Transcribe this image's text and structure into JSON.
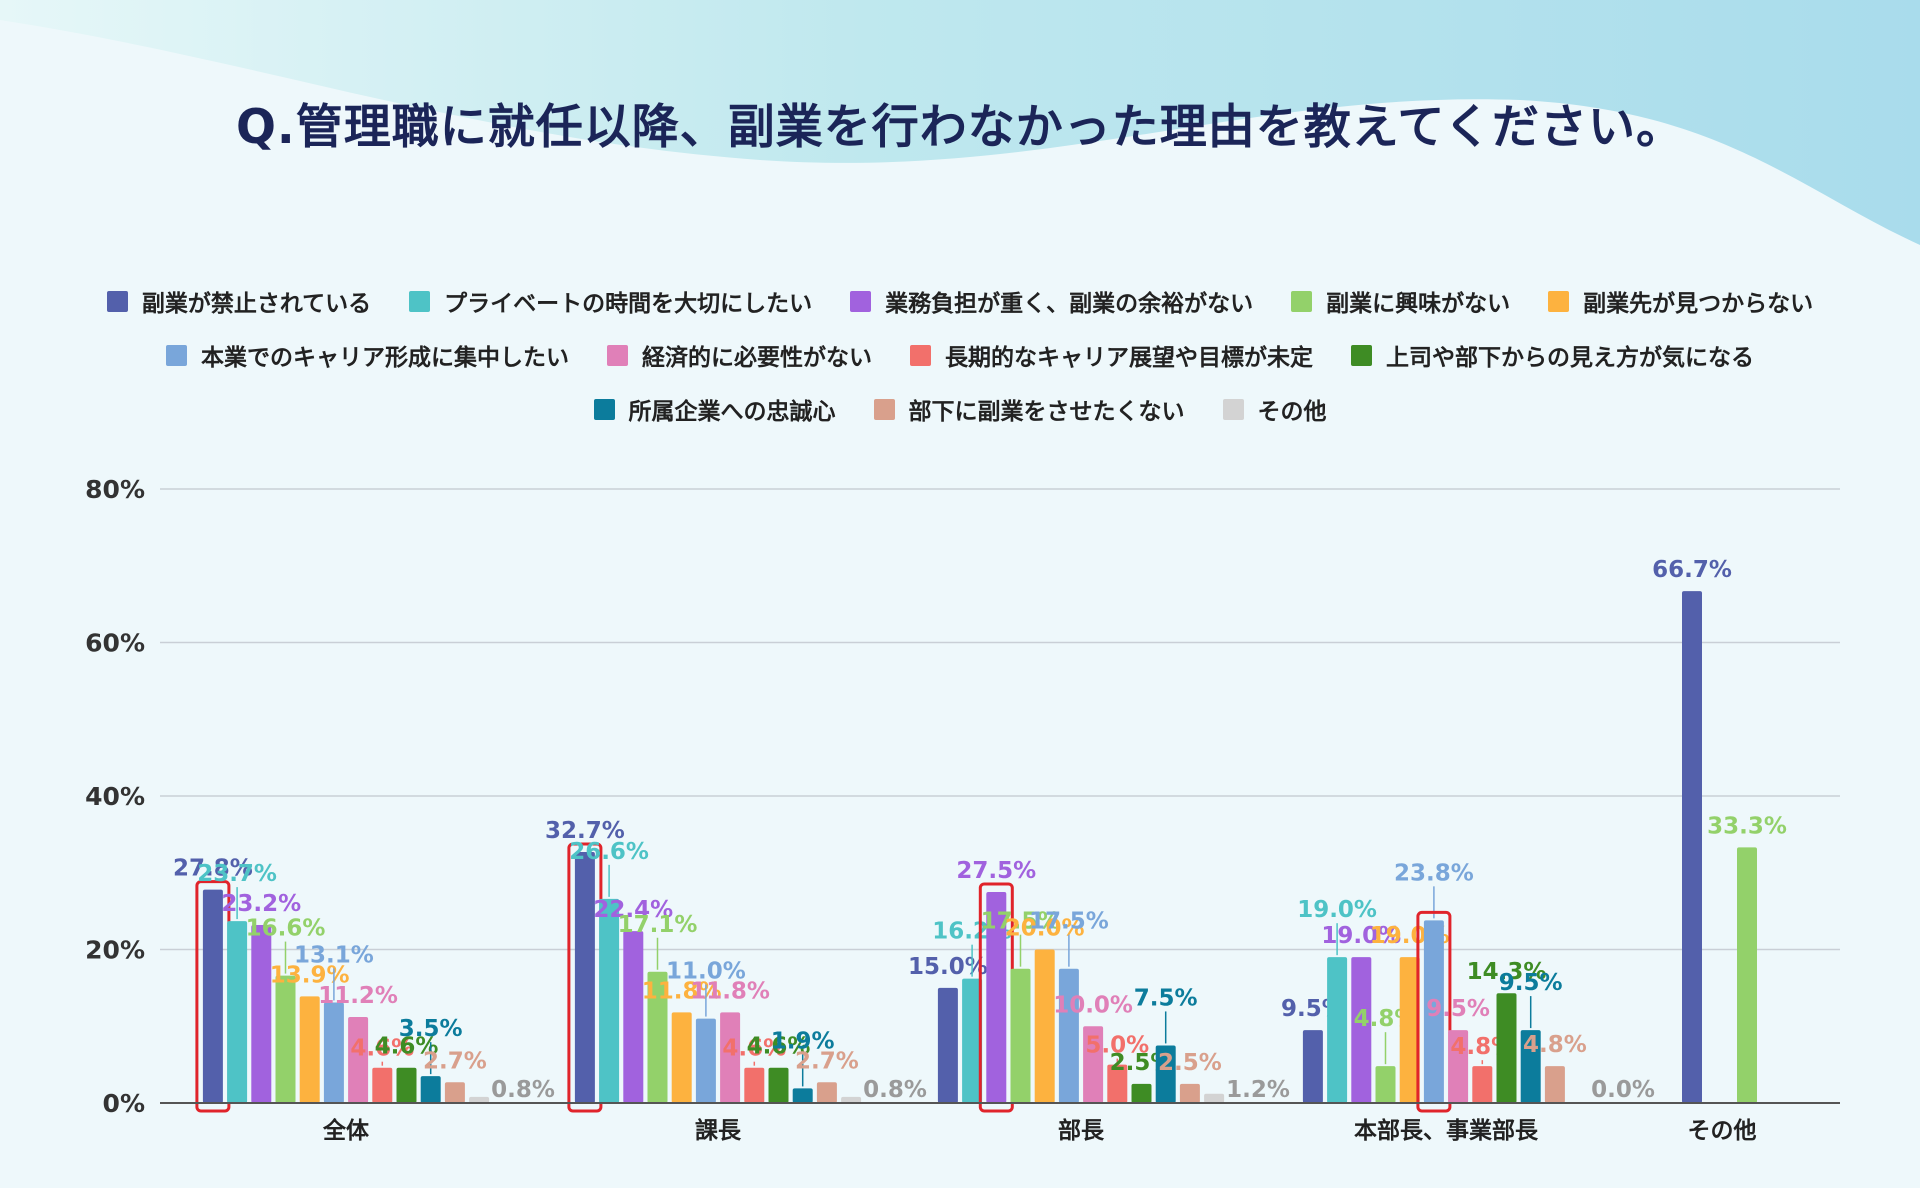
{
  "title": "Q.管理職に就任以降、副業を行わなかった理由を教えてください。",
  "chart_data": {
    "type": "bar",
    "title": "Q.管理職に就任以降、副業を行わなかった理由を教えてください。",
    "ylim": [
      0,
      80
    ],
    "yticks": [
      "0%",
      "20%",
      "40%",
      "60%",
      "80%"
    ],
    "unit": "%",
    "grid": true,
    "legend_position": "top",
    "categories": [
      "全体",
      "課長",
      "部長",
      "本部長、事業部長",
      "その他"
    ],
    "series": [
      {
        "name": "副業が禁止されている",
        "color": "#5360ab",
        "values": [
          27.8,
          32.7,
          15.0,
          9.5,
          66.7
        ]
      },
      {
        "name": "プライベートの時間を大切にしたい",
        "color": "#4ec3c6",
        "values": [
          23.7,
          26.6,
          16.2,
          19.0,
          null
        ]
      },
      {
        "name": "業務負担が重く、副業の余裕がない",
        "color": "#a162de",
        "values": [
          23.2,
          22.4,
          27.5,
          19.0,
          null
        ]
      },
      {
        "name": "副業に興味がない",
        "color": "#93d16a",
        "values": [
          16.6,
          17.1,
          17.5,
          4.8,
          33.3
        ]
      },
      {
        "name": "副業先が見つからない",
        "color": "#fdb23f",
        "values": [
          13.9,
          11.8,
          20.0,
          19.0,
          null
        ]
      },
      {
        "name": "本業でのキャリア形成に集中したい",
        "color": "#79a6da",
        "values": [
          13.1,
          11.0,
          17.5,
          23.8,
          null
        ]
      },
      {
        "name": "経済的に必要性がない",
        "color": "#e080b8",
        "values": [
          11.2,
          11.8,
          10.0,
          9.5,
          null
        ]
      },
      {
        "name": "長期的なキャリア展望や目標が未定",
        "color": "#f2706b",
        "values": [
          4.6,
          4.6,
          5.0,
          4.8,
          null
        ]
      },
      {
        "name": "上司や部下からの見え方が気になる",
        "color": "#3e8c24",
        "values": [
          4.6,
          4.6,
          2.5,
          14.3,
          null
        ]
      },
      {
        "name": "所属企業への忠誠心",
        "color": "#0c7c9c",
        "values": [
          3.5,
          1.9,
          7.5,
          9.5,
          null
        ]
      },
      {
        "name": "部下に副業をさせたくない",
        "color": "#d9a08c",
        "values": [
          2.7,
          2.7,
          2.5,
          4.8,
          null
        ]
      },
      {
        "name": "その他",
        "color": "#d3d3d3",
        "values": [
          0.8,
          0.8,
          1.2,
          0.0,
          null
        ]
      }
    ],
    "value_labels": [
      [
        "27.8%",
        "23.7%",
        "23.2%",
        "16.6%",
        "13.9%",
        "13.1%",
        "11.2%",
        "4.6%",
        "4.6%",
        "3.5%",
        "2.7%",
        "0.8%"
      ],
      [
        "32.7%",
        "26.6%",
        "22.4%",
        "17.1%",
        "11.8%",
        "11.0%",
        "11.8%",
        "4.6%",
        "4.6%",
        "1.9%",
        "2.7%",
        "0.8%"
      ],
      [
        "15.0%",
        "16.2%",
        "27.5%",
        "17.5%",
        "20.0%",
        "17.5%",
        "10.0%",
        "5.0%",
        "2.5%",
        "7.5%",
        "2.5%",
        "1.2%"
      ],
      [
        "9.5%",
        "19.0%",
        "19.0%",
        "4.8%",
        "19.0%",
        "23.8%",
        "9.5%",
        "4.8%",
        "14.3%",
        "9.5%",
        "4.8%",
        "0.0%"
      ],
      [
        "66.7%",
        null,
        null,
        "33.3%",
        null,
        null,
        null,
        null,
        null,
        null,
        null,
        null
      ]
    ],
    "highlighted": [
      [
        0,
        0
      ],
      [
        1,
        0
      ],
      [
        2,
        2
      ],
      [
        3,
        5
      ]
    ],
    "highlight_color": "#e0242b"
  }
}
